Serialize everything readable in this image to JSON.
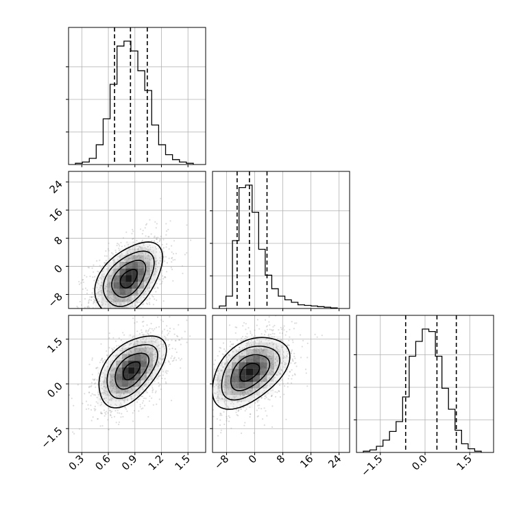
{
  "chart_data": {
    "type": "corner",
    "parameters": [
      {
        "ticks": [
          0.3,
          0.6,
          0.9,
          1.2,
          1.5
        ],
        "tick_labels": [
          "0.3",
          "0.6",
          "0.9",
          "1.2",
          "1.5"
        ],
        "range": [
          0.15,
          1.7
        ],
        "quantiles": [
          0.67,
          0.85,
          1.04
        ],
        "hist_density": [
          0.01,
          0.02,
          0.05,
          0.16,
          0.37,
          0.65,
          0.96,
          1.0,
          0.92,
          0.76,
          0.6,
          0.32,
          0.16,
          0.08,
          0.04,
          0.02,
          0.01
        ]
      },
      {
        "ticks": [
          -8,
          0,
          8,
          16,
          24
        ],
        "tick_labels": [
          "−8",
          "0",
          "8",
          "16",
          "24"
        ],
        "range": [
          -12,
          27
        ],
        "quantiles": [
          -5,
          -1.5,
          3.5
        ],
        "hist_density": [
          0.02,
          0.1,
          0.55,
          0.98,
          1.0,
          0.78,
          0.48,
          0.27,
          0.16,
          0.1,
          0.07,
          0.05,
          0.03,
          0.025,
          0.02,
          0.015,
          0.01,
          0.005
        ]
      },
      {
        "ticks": [
          -1.5,
          0.0,
          1.5
        ],
        "tick_labels": [
          "−1.5",
          "0.0",
          "1.5"
        ],
        "range": [
          -2.3,
          2.3
        ],
        "quantiles": [
          -0.65,
          0.4,
          1.05
        ],
        "hist_density": [
          0.01,
          0.02,
          0.05,
          0.1,
          0.17,
          0.25,
          0.45,
          0.78,
          0.9,
          1.0,
          0.98,
          0.78,
          0.52,
          0.35,
          0.18,
          0.07,
          0.03,
          0.01
        ]
      }
    ],
    "pairs": [
      {
        "x": 0,
        "y": 1,
        "center": [
          0.83,
          -3.5
        ],
        "sd": [
          0.19,
          5.2
        ],
        "corr": 0.45,
        "contour_levels": [
          0.5,
          1.0,
          1.5,
          2.0
        ]
      },
      {
        "x": 0,
        "y": 2,
        "center": [
          0.86,
          0.45
        ],
        "sd": [
          0.19,
          0.6
        ],
        "corr": 0.5,
        "contour_levels": [
          0.5,
          1.0,
          1.5,
          2.0
        ]
      },
      {
        "x": 1,
        "y": 2,
        "center": [
          -1.5,
          0.4
        ],
        "sd": [
          5.5,
          0.6
        ],
        "corr": 0.45,
        "contour_levels": [
          0.5,
          1.0,
          1.5,
          2.0
        ]
      }
    ],
    "grid": true,
    "legend": "none"
  }
}
